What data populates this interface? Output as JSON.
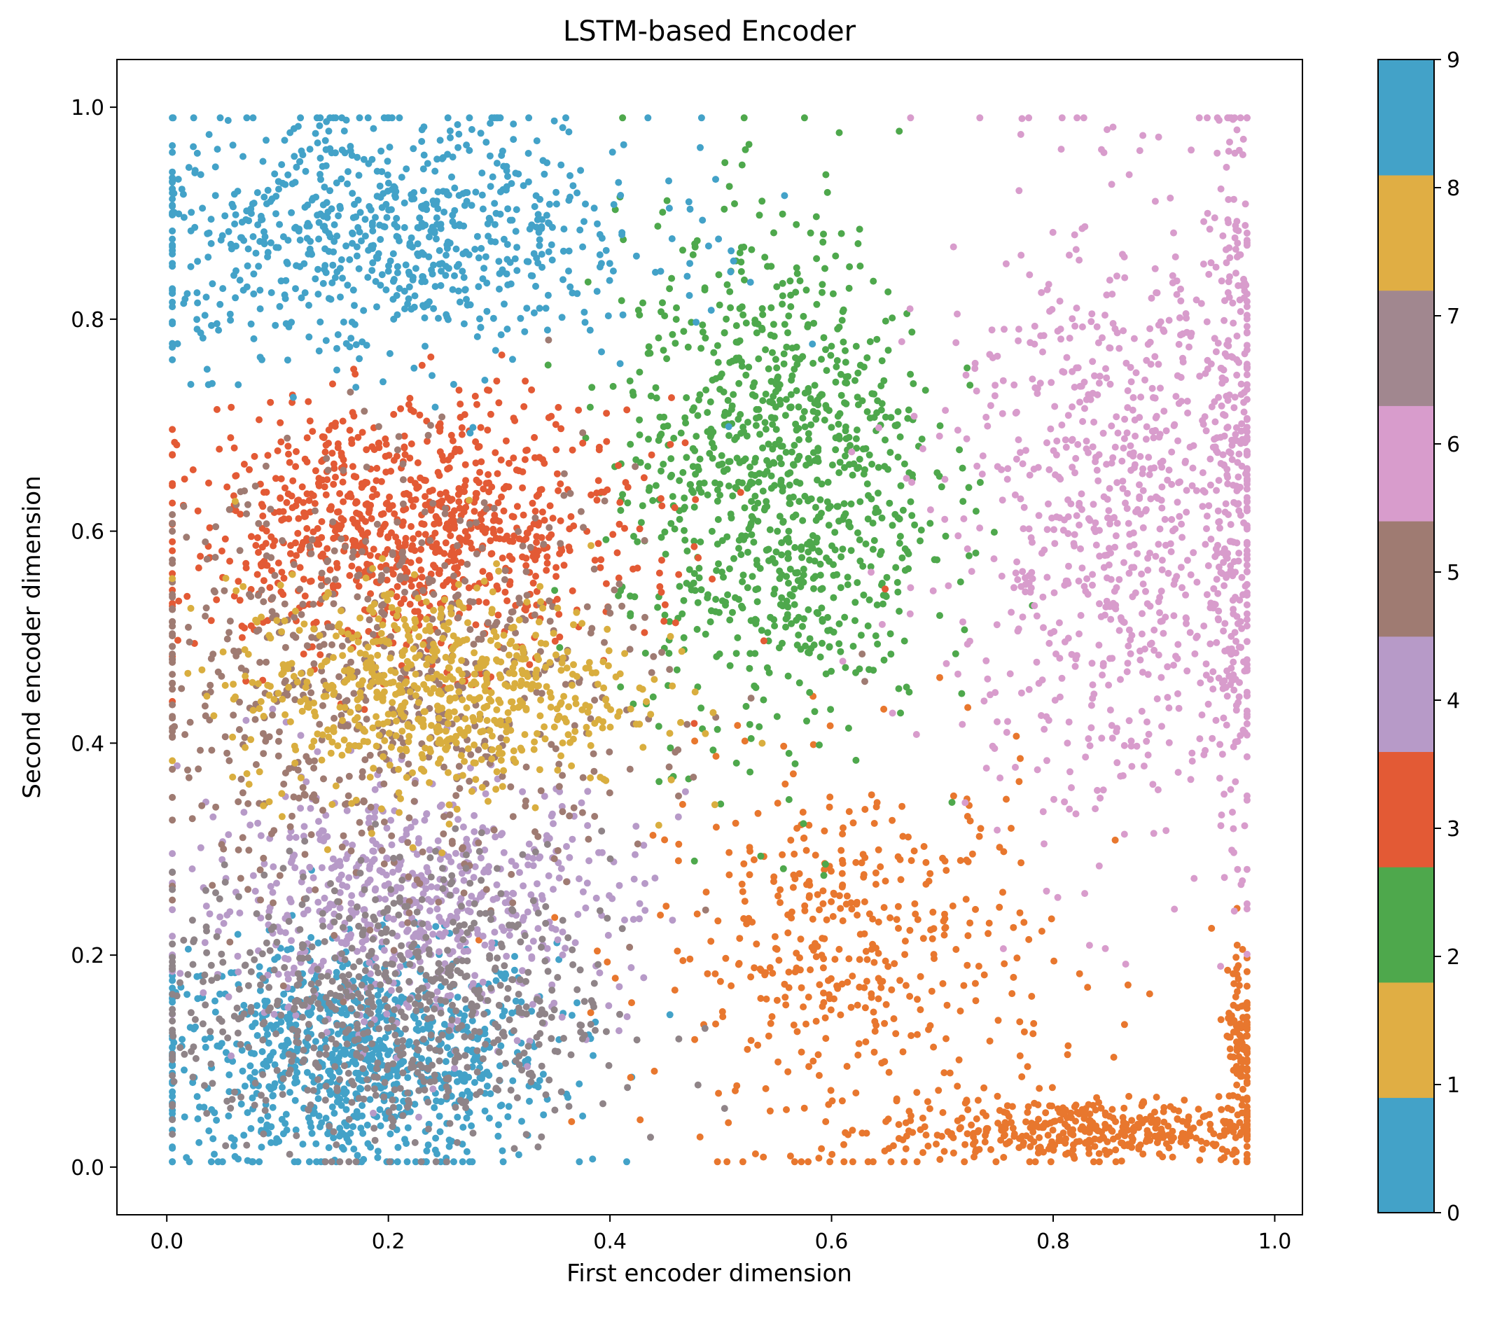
{
  "chart_data": {
    "type": "scatter",
    "title": "LSTM-based Encoder",
    "xlabel": "First encoder dimension",
    "ylabel": "Second encoder dimension",
    "xlim": [
      -0.045,
      1.025
    ],
    "ylim": [
      -0.045,
      1.045
    ],
    "xticks": [
      "0.0",
      "0.2",
      "0.4",
      "0.6",
      "0.8",
      "1.0"
    ],
    "yticks": [
      "0.0",
      "0.2",
      "0.4",
      "0.6",
      "0.8",
      "1.0"
    ],
    "grid": false,
    "colorbar": {
      "ticks": [
        "0",
        "1",
        "2",
        "3",
        "4",
        "5",
        "6",
        "7",
        "8",
        "9"
      ],
      "range": [
        0,
        9
      ],
      "colors": [
        "#43a2c8",
        "#e0ae44",
        "#4ea84c",
        "#e35a35",
        "#b79ac8",
        "#9f7b72",
        "#d89ccc",
        "#a1878f",
        "#e0ae44",
        "#43a2c8"
      ]
    },
    "series": [
      {
        "label": "0",
        "color": "#43a2c8",
        "clusters": [
          {
            "cx": 0.17,
            "cy": 0.1,
            "sx": 0.09,
            "sy": 0.055,
            "n": 900
          }
        ]
      },
      {
        "label": "1",
        "color": "#e8772e",
        "clusters": [
          {
            "cx": 0.62,
            "cy": 0.2,
            "sx": 0.09,
            "sy": 0.09,
            "n": 450
          },
          {
            "cx": 0.83,
            "cy": 0.035,
            "sx": 0.09,
            "sy": 0.015,
            "n": 420
          },
          {
            "cx": 0.97,
            "cy": 0.12,
            "sx": 0.008,
            "sy": 0.05,
            "n": 120
          }
        ]
      },
      {
        "label": "2",
        "color": "#4ea84c",
        "clusters": [
          {
            "cx": 0.55,
            "cy": 0.65,
            "sx": 0.07,
            "sy": 0.12,
            "n": 1000
          }
        ]
      },
      {
        "label": "3",
        "color": "#e35a35",
        "clusters": [
          {
            "cx": 0.22,
            "cy": 0.6,
            "sx": 0.1,
            "sy": 0.06,
            "n": 950
          }
        ]
      },
      {
        "label": "4",
        "color": "#b79ac8",
        "clusters": [
          {
            "cx": 0.22,
            "cy": 0.25,
            "sx": 0.1,
            "sy": 0.06,
            "n": 650
          }
        ]
      },
      {
        "label": "5",
        "color": "#9f7b72",
        "clusters": [
          {
            "cx": 0.2,
            "cy": 0.45,
            "sx": 0.12,
            "sy": 0.1,
            "n": 700
          }
        ]
      },
      {
        "label": "6",
        "color": "#d89ccc",
        "clusters": [
          {
            "cx": 0.86,
            "cy": 0.62,
            "sx": 0.08,
            "sy": 0.15,
            "n": 850
          },
          {
            "cx": 0.96,
            "cy": 0.65,
            "sx": 0.01,
            "sy": 0.18,
            "n": 250
          }
        ]
      },
      {
        "label": "7",
        "color": "#8f8488",
        "clusters": [
          {
            "cx": 0.2,
            "cy": 0.15,
            "sx": 0.1,
            "sy": 0.07,
            "n": 700
          }
        ]
      },
      {
        "label": "8",
        "color": "#d9ae3f",
        "clusters": [
          {
            "cx": 0.24,
            "cy": 0.45,
            "sx": 0.09,
            "sy": 0.05,
            "n": 700
          }
        ]
      },
      {
        "label": "9",
        "color": "#43a2c8",
        "clusters": [
          {
            "cx": 0.2,
            "cy": 0.88,
            "sx": 0.12,
            "sy": 0.06,
            "n": 800
          }
        ]
      }
    ]
  }
}
